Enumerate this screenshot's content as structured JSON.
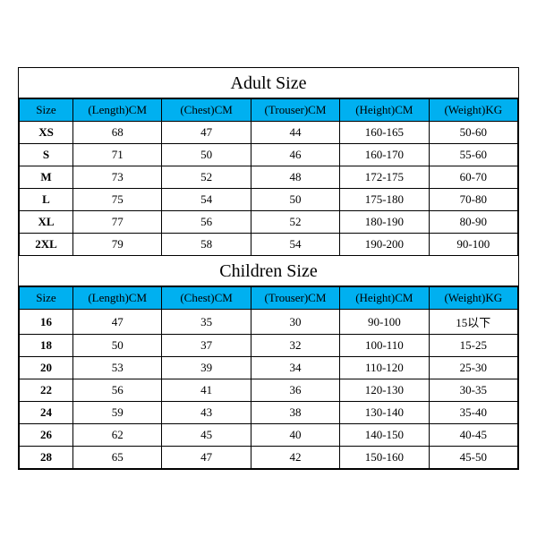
{
  "colors": {
    "header_bg": "#00b0f0",
    "border": "#000000",
    "background": "#ffffff",
    "text": "#000000"
  },
  "typography": {
    "title_fontsize": 20,
    "cell_fontsize": 13,
    "font_family": "Times New Roman"
  },
  "adult": {
    "title": "Adult Size",
    "columns": [
      "Size",
      "(Length)CM",
      "(Chest)CM",
      "(Trouser)CM",
      "(Height)CM",
      "(Weight)KG"
    ],
    "rows": [
      [
        "XS",
        "68",
        "47",
        "44",
        "160-165",
        "50-60"
      ],
      [
        "S",
        "71",
        "50",
        "46",
        "160-170",
        "55-60"
      ],
      [
        "M",
        "73",
        "52",
        "48",
        "172-175",
        "60-70"
      ],
      [
        "L",
        "75",
        "54",
        "50",
        "175-180",
        "70-80"
      ],
      [
        "XL",
        "77",
        "56",
        "52",
        "180-190",
        "80-90"
      ],
      [
        "2XL",
        "79",
        "58",
        "54",
        "190-200",
        "90-100"
      ]
    ]
  },
  "children": {
    "title": "Children Size",
    "columns": [
      "Size",
      "(Length)CM",
      "(Chest)CM",
      "(Trouser)CM",
      "(Height)CM",
      "(Weight)KG"
    ],
    "rows": [
      [
        "16",
        "47",
        "35",
        "30",
        "90-100",
        "15以下"
      ],
      [
        "18",
        "50",
        "37",
        "32",
        "100-110",
        "15-25"
      ],
      [
        "20",
        "53",
        "39",
        "34",
        "110-120",
        "25-30"
      ],
      [
        "22",
        "56",
        "41",
        "36",
        "120-130",
        "30-35"
      ],
      [
        "24",
        "59",
        "43",
        "38",
        "130-140",
        "35-40"
      ],
      [
        "26",
        "62",
        "45",
        "40",
        "140-150",
        "40-45"
      ],
      [
        "28",
        "65",
        "47",
        "42",
        "150-160",
        "45-50"
      ]
    ]
  }
}
